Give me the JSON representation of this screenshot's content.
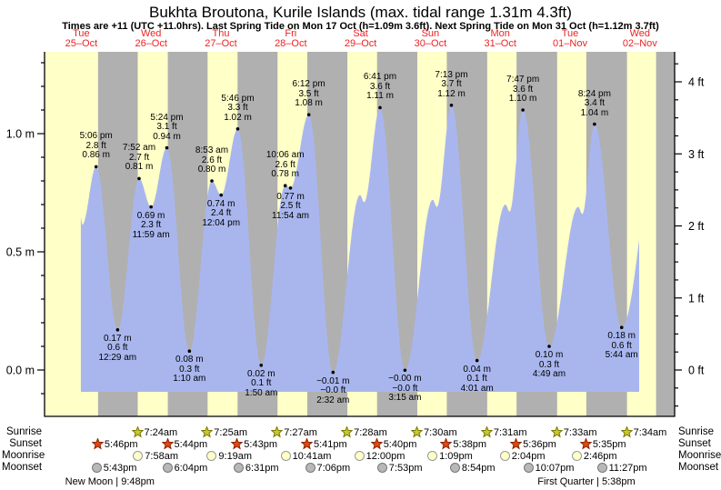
{
  "title": "Bukhta Broutona, Kurile Islands (max. tidal range 1.31m 4.3ft)",
  "subtitle": "Times are +11 (UTC +11.0hrs). Last Spring Tide on Mon 17 Oct (h=1.09m 3.6ft). Next Spring Tide on Mon 31 Oct (h=1.12m 3.7ft)",
  "days": [
    {
      "name": "Tue",
      "date": "25–Oct"
    },
    {
      "name": "Wed",
      "date": "26–Oct"
    },
    {
      "name": "Thu",
      "date": "27–Oct"
    },
    {
      "name": "Fri",
      "date": "28–Oct"
    },
    {
      "name": "Sat",
      "date": "29–Oct"
    },
    {
      "name": "Sun",
      "date": "30–Oct"
    },
    {
      "name": "Mon",
      "date": "31–Oct"
    },
    {
      "name": "Tue",
      "date": "01–Nov"
    },
    {
      "name": "Wed",
      "date": "02–Nov"
    }
  ],
  "chart_data": {
    "type": "area",
    "title": "Bukhta Broutona, Kurile Islands tide curve",
    "x_axis": "9 days, Tue 25-Oct through Wed 02-Nov, day/night shading from sunset to sunrise",
    "ylim_m": [
      -0.19,
      1.35
    ],
    "t_start_day": 0.494,
    "t_end_day": 8.49,
    "y_axis_m": {
      "unit": "m",
      "minor_step": 0.1,
      "labels": [
        {
          "text": "0.0 m",
          "value": 0.0
        },
        {
          "text": "0.5 m",
          "value": 0.5
        },
        {
          "text": "1.0 m",
          "value": 1.0
        }
      ]
    },
    "y_axis_ft": {
      "unit": "ft",
      "minor_step": 0.25,
      "labels": [
        {
          "text": "0 ft",
          "value": 0
        },
        {
          "text": "1 ft",
          "value": 1
        },
        {
          "text": "2 ft",
          "value": 2
        },
        {
          "text": "3 ft",
          "value": 3
        },
        {
          "text": "4 ft",
          "value": 4
        }
      ]
    },
    "tide_events": [
      {
        "day": 0,
        "hour": 11.85,
        "m": 0.645,
        "shape": true
      },
      {
        "day": 0,
        "hour": 12.33,
        "m": 0.615,
        "shape": true
      },
      {
        "day": 0,
        "hour": 17.1,
        "m": 0.86,
        "type": "high",
        "lines": [
          "5:06 pm",
          "2.8 ft",
          "0.86 m"
        ]
      },
      {
        "day": 1,
        "hour": 0.483,
        "m": 0.17,
        "type": "low",
        "lines": [
          "0.17 m",
          "0.6 ft",
          "12:29 am"
        ]
      },
      {
        "day": 1,
        "hour": 7.867,
        "m": 0.81,
        "type": "high",
        "lines": [
          "7:52 am",
          "2.7 ft",
          "0.81 m"
        ]
      },
      {
        "day": 1,
        "hour": 11.983,
        "m": 0.69,
        "type": "low",
        "lines": [
          "0.69 m",
          "2.3 ft",
          "11:59 am"
        ]
      },
      {
        "day": 1,
        "hour": 17.4,
        "m": 0.94,
        "type": "high",
        "lines": [
          "5:24 pm",
          "3.1 ft",
          "0.94 m"
        ]
      },
      {
        "day": 2,
        "hour": 1.167,
        "m": 0.08,
        "type": "low",
        "lines": [
          "0.08 m",
          "0.3 ft",
          "1:10 am"
        ]
      },
      {
        "day": 2,
        "hour": 8.883,
        "m": 0.8,
        "type": "high",
        "lines": [
          "8:53 am",
          "2.6 ft",
          "0.80 m"
        ]
      },
      {
        "day": 2,
        "hour": 12.067,
        "m": 0.74,
        "type": "low",
        "lines": [
          "0.74 m",
          "2.4 ft",
          "12:04 pm"
        ]
      },
      {
        "day": 2,
        "hour": 17.767,
        "m": 1.02,
        "type": "high",
        "lines": [
          "5:46 pm",
          "3.3 ft",
          "1.02 m"
        ]
      },
      {
        "day": 3,
        "hour": 1.833,
        "m": 0.02,
        "type": "low",
        "lines": [
          "0.02 m",
          "0.1 ft",
          "1:50 am"
        ]
      },
      {
        "day": 3,
        "hour": 10.1,
        "m": 0.78,
        "type": "high",
        "lines": [
          "10:06 am",
          "2.6 ft",
          "0.78 m"
        ]
      },
      {
        "day": 3,
        "hour": 11.9,
        "m": 0.77,
        "type": "low",
        "lines": [
          "0.77 m",
          "2.5 ft",
          "11:54 am"
        ]
      },
      {
        "day": 3,
        "hour": 18.2,
        "m": 1.08,
        "type": "high",
        "lines": [
          "6:12 pm",
          "3.5 ft",
          "1.08 m"
        ]
      },
      {
        "day": 4,
        "hour": 2.533,
        "m": -0.01,
        "type": "low",
        "lines": [
          "−0.01 m",
          "−0.0 ft",
          "2:32 am"
        ]
      },
      {
        "day": 4,
        "hour": 11.8,
        "m": 0.74,
        "shape": true
      },
      {
        "day": 4,
        "hour": 13.2,
        "m": 0.71,
        "shape": true
      },
      {
        "day": 4,
        "hour": 18.683,
        "m": 1.11,
        "type": "high",
        "lines": [
          "6:41 pm",
          "3.6 ft",
          "1.11 m"
        ]
      },
      {
        "day": 5,
        "hour": 3.25,
        "m": -0.001,
        "type": "low",
        "lines": [
          "−0.00 m",
          "−0.0 ft",
          "3:15 am"
        ]
      },
      {
        "day": 5,
        "hour": 12.8,
        "m": 0.72,
        "shape": true
      },
      {
        "day": 5,
        "hour": 14.2,
        "m": 0.69,
        "shape": true
      },
      {
        "day": 5,
        "hour": 19.217,
        "m": 1.12,
        "type": "high",
        "lines": [
          "7:13 pm",
          "3.7 ft",
          "1.12 m"
        ]
      },
      {
        "day": 6,
        "hour": 4.017,
        "m": 0.04,
        "type": "low",
        "lines": [
          "0.04 m",
          "0.1 ft",
          "4:01 am"
        ]
      },
      {
        "day": 6,
        "hour": 13.8,
        "m": 0.7,
        "shape": true
      },
      {
        "day": 6,
        "hour": 15.2,
        "m": 0.67,
        "shape": true
      },
      {
        "day": 6,
        "hour": 19.783,
        "m": 1.1,
        "type": "high",
        "lines": [
          "7:47 pm",
          "3.6 ft",
          "1.10 m"
        ]
      },
      {
        "day": 7,
        "hour": 4.817,
        "m": 0.1,
        "type": "low",
        "lines": [
          "0.10 m",
          "0.3 ft",
          "4:49 am"
        ]
      },
      {
        "day": 7,
        "hour": 14.8,
        "m": 0.69,
        "shape": true
      },
      {
        "day": 7,
        "hour": 16.2,
        "m": 0.66,
        "shape": true
      },
      {
        "day": 7,
        "hour": 20.4,
        "m": 1.04,
        "type": "high",
        "lines": [
          "8:24 pm",
          "3.4 ft",
          "1.04 m"
        ]
      },
      {
        "day": 8,
        "hour": 5.733,
        "m": 0.18,
        "type": "low",
        "lines": [
          "0.18 m",
          "0.6 ft",
          "5:44 am"
        ]
      },
      {
        "day": 8,
        "hour": 18.5,
        "m": 1.0,
        "shape": true
      }
    ]
  },
  "sun_moon": {
    "rows": [
      {
        "label": "Sunrise",
        "icon": "sunrise-star",
        "entries": [
          {
            "day": 1,
            "time": "7:24am"
          },
          {
            "day": 2,
            "time": "7:25am"
          },
          {
            "day": 3,
            "time": "7:27am"
          },
          {
            "day": 4,
            "time": "7:28am"
          },
          {
            "day": 5,
            "time": "7:30am"
          },
          {
            "day": 6,
            "time": "7:31am"
          },
          {
            "day": 7,
            "time": "7:33am"
          },
          {
            "day": 8,
            "time": "7:34am"
          }
        ]
      },
      {
        "label": "Sunset",
        "icon": "sunset-star",
        "entries": [
          {
            "day": 0,
            "time": "5:46pm"
          },
          {
            "day": 1,
            "time": "5:44pm"
          },
          {
            "day": 2,
            "time": "5:43pm"
          },
          {
            "day": 3,
            "time": "5:41pm"
          },
          {
            "day": 4,
            "time": "5:40pm"
          },
          {
            "day": 5,
            "time": "5:38pm"
          },
          {
            "day": 6,
            "time": "5:36pm"
          },
          {
            "day": 7,
            "time": "5:35pm"
          }
        ]
      },
      {
        "label": "Moonrise",
        "icon": "moonrise-circle",
        "entries": [
          {
            "day": 1,
            "time": "7:58am"
          },
          {
            "day": 2,
            "time": "9:19am"
          },
          {
            "day": 3,
            "time": "10:41am"
          },
          {
            "day": 4,
            "time": "12:00pm"
          },
          {
            "day": 5,
            "time": "1:09pm"
          },
          {
            "day": 6,
            "time": "2:04pm"
          },
          {
            "day": 7,
            "time": "2:46pm"
          }
        ]
      },
      {
        "label": "Moonset",
        "icon": "moonset-circle",
        "entries": [
          {
            "day": 0,
            "time": "5:43pm"
          },
          {
            "day": 1,
            "time": "6:04pm"
          },
          {
            "day": 2,
            "time": "6:31pm"
          },
          {
            "day": 3,
            "time": "7:06pm"
          },
          {
            "day": 4,
            "time": "7:53pm"
          },
          {
            "day": 5,
            "time": "8:54pm"
          },
          {
            "day": 6,
            "time": "10:07pm"
          },
          {
            "day": 7,
            "time": "11:27pm"
          }
        ]
      }
    ],
    "phases": [
      {
        "text": "New Moon | 9:48pm",
        "day": 0,
        "time": "9:48pm"
      },
      {
        "text": "First Quarter | 5:38pm",
        "day": 7,
        "time": "5:38pm"
      }
    ]
  },
  "colors": {
    "day_band": "#ffffc8",
    "night_band": "#b0b0b0",
    "tide_fill": "#a9b6ee",
    "date_red": "#ee2222",
    "axis_black": "#000000",
    "sunrise_star": "#c9c832",
    "sunrise_star_border": "#787800",
    "sunset_star": "#e04a0e",
    "sunset_star_border": "#8b2200",
    "moonrise_fill": "#ffffc8",
    "moonrise_border": "#999999",
    "moonset_fill": "#b8b8b8",
    "moonset_border": "#777777"
  }
}
